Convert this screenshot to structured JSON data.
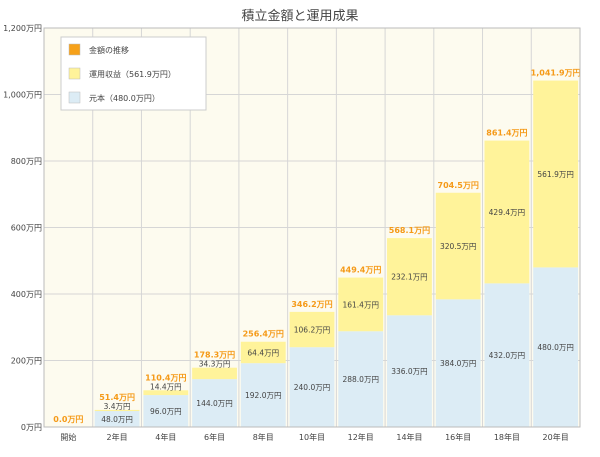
{
  "colors": {
    "plot_bg": "#fdfbef",
    "grid": "#d6d6d6",
    "principal": "#dcecf5",
    "gain": "#fff39a",
    "total_label": "#f59a18",
    "legend_total": "#f6a11a",
    "text": "#444444"
  },
  "chart_data": {
    "type": "bar",
    "stacked": true,
    "title": "積立金額と運用成果",
    "xlabel": "",
    "ylabel": "",
    "ylim": [
      0,
      1200
    ],
    "yticks": [
      0,
      200,
      400,
      600,
      800,
      1000,
      1200
    ],
    "ytick_labels": [
      "0万円",
      "200万円",
      "400万円",
      "600万円",
      "800万円",
      "1,000万円",
      "1,200万円"
    ],
    "grid": true,
    "legend_position": "top-left",
    "categories": [
      "開始",
      "2年目",
      "4年目",
      "6年目",
      "8年目",
      "10年目",
      "12年目",
      "14年目",
      "16年目",
      "18年目",
      "20年目"
    ],
    "series": [
      {
        "name": "元本（480.0万円）",
        "values": [
          0,
          48.0,
          96.0,
          144.0,
          192.0,
          240.0,
          288.0,
          336.0,
          384.0,
          432.0,
          480.0
        ],
        "labels": [
          "",
          "48.0万円",
          "96.0万円",
          "144.0万円",
          "192.0万円",
          "240.0万円",
          "288.0万円",
          "336.0万円",
          "384.0万円",
          "432.0万円",
          "480.0万円"
        ]
      },
      {
        "name": "運用収益（561.9万円）",
        "values": [
          0,
          3.4,
          14.4,
          34.3,
          64.4,
          106.2,
          161.4,
          232.1,
          320.5,
          429.4,
          561.9
        ],
        "labels": [
          "",
          "3.4万円",
          "14.4万円",
          "34.3万円",
          "64.4万円",
          "106.2万円",
          "161.4万円",
          "232.1万円",
          "320.5万円",
          "429.4万円",
          "561.9万円"
        ]
      }
    ],
    "totals": [
      0.0,
      51.4,
      110.4,
      178.3,
      256.4,
      346.2,
      449.4,
      568.1,
      704.5,
      861.4,
      1041.9
    ],
    "total_labels": [
      "0.0万円",
      "51.4万円",
      "110.4万円",
      "178.3万円",
      "256.4万円",
      "346.2万円",
      "449.4万円",
      "568.1万円",
      "704.5万円",
      "861.4万円",
      "1,041.9万円"
    ],
    "legend": [
      "金額の推移",
      "運用収益（561.9万円）",
      "元本（480.0万円）"
    ]
  }
}
